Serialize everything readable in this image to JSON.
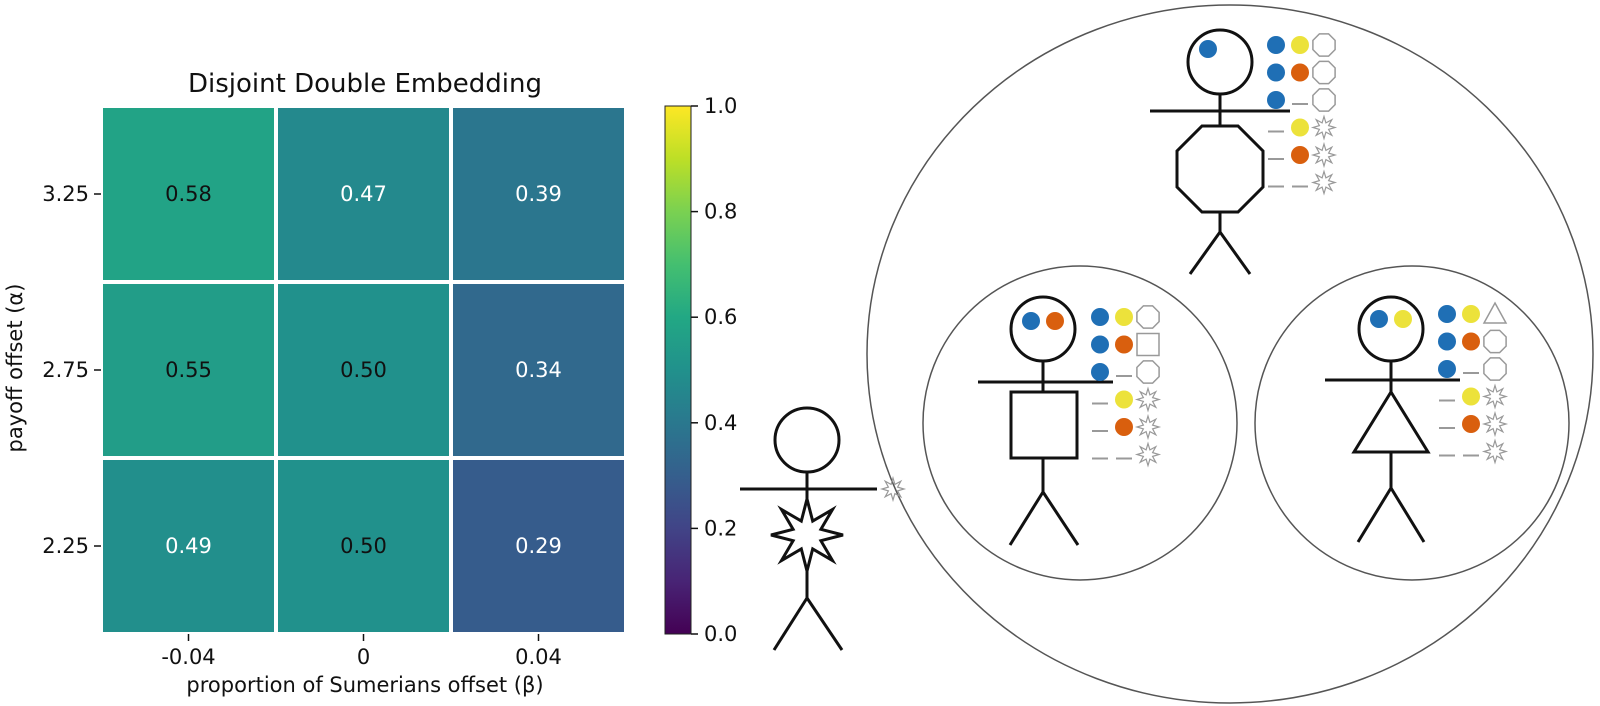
{
  "chart_data": {
    "type": "heatmap",
    "title": "Disjoint Double Embedding",
    "xlabel": "proportion of Sumerians offset (β)",
    "ylabel": "payoff offset (α)",
    "x_categories": [
      "-0.04",
      "0",
      "0.04"
    ],
    "y_categories": [
      "3.25",
      "2.75",
      "2.25"
    ],
    "values": [
      [
        0.58,
        0.47,
        0.39
      ],
      [
        0.55,
        0.5,
        0.34
      ],
      [
        0.49,
        0.5,
        0.29
      ]
    ],
    "cell_labels": [
      [
        "0.58",
        "0.47",
        "0.39"
      ],
      [
        "0.55",
        "0.50",
        "0.34"
      ],
      [
        "0.49",
        "0.50",
        "0.29"
      ]
    ],
    "value_range": [
      0.0,
      1.0
    ],
    "colormap": "viridis",
    "colorbar": {
      "ticks": [
        0.0,
        0.2,
        0.4,
        0.6,
        0.8,
        1.0
      ],
      "tick_labels": [
        "0.0",
        "0.2",
        "0.4",
        "0.6",
        "0.8",
        "1.0"
      ]
    }
  },
  "diagram": {
    "figures": [
      {
        "id": "outer",
        "body_shape": "octagon",
        "head_dots": [
          "#1f6fb5"
        ]
      },
      {
        "id": "left",
        "body_shape": "square",
        "head_dots": [
          "#1f6fb5",
          "#d95f0e"
        ]
      },
      {
        "id": "right",
        "body_shape": "triangle",
        "head_dots": [
          "#1f6fb5",
          "#f0e040"
        ]
      },
      {
        "id": "solo",
        "body_shape": "star",
        "head_dots": []
      }
    ],
    "colors": {
      "blue": "#1f6fb5",
      "orange": "#d95f0e",
      "yellow": "#ece23b",
      "gray": "#999999"
    }
  }
}
